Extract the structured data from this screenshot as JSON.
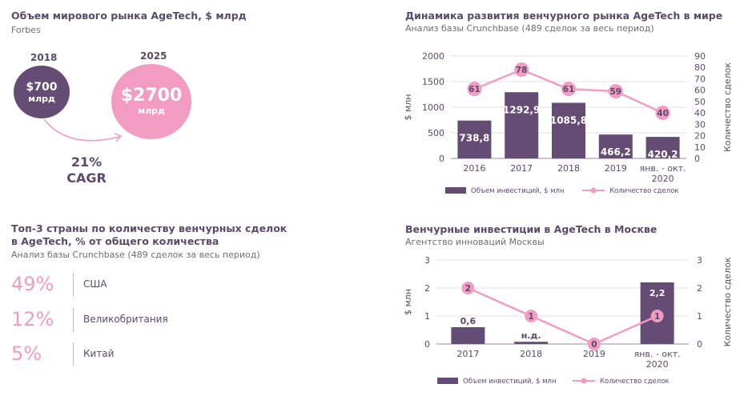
{
  "market": {
    "title": "Объем мирового рынка AgeTech, $ млрд",
    "source": "Forbes",
    "year_2018": "2018",
    "value_2018": "$700",
    "unit_2018": "млрд",
    "year_2025": "2025",
    "value_2025": "$2700",
    "unit_2025": "млрд",
    "cagr_value": "21%",
    "cagr_label": "CAGR",
    "colors": {
      "bubble_2018": "#654c74",
      "bubble_2025": "#f29cc1"
    }
  },
  "countries": {
    "title_line1": "Топ-3 страны по количеству венчурных сделок",
    "title_line2": "в AgeTech, % от общего количества",
    "source": "Анализ базы Crunchbase (489 сделок за весь период)",
    "items": [
      {
        "pct": "49%",
        "name": "США"
      },
      {
        "pct": "12%",
        "name": "Великобритания"
      },
      {
        "pct": "5%",
        "name": "Китай"
      }
    ]
  },
  "chart_data": [
    {
      "type": "bar",
      "title": "Динамика развития венчурного рынка AgeTech в мире",
      "subtitle": "Анализ базы Crunchbase (489 сделок за весь период)",
      "categories": [
        [
          "2016"
        ],
        [
          "2017"
        ],
        [
          "2018"
        ],
        [
          "2019"
        ],
        [
          "янв. - окт.",
          "2020"
        ]
      ],
      "series": [
        {
          "name": "Объем инвестиций, $ млн",
          "type": "bar",
          "axis": "left",
          "values": [
            738.8,
            1292.9,
            1085.8,
            466.2,
            420.2
          ],
          "labels": [
            "738,8",
            "1292,9",
            "1085,8",
            "466,2",
            "420,2"
          ],
          "color": "#654c74"
        },
        {
          "name": "Количество сделок",
          "type": "line",
          "axis": "right",
          "values": [
            61,
            78,
            61,
            59,
            40
          ],
          "labels": [
            "61",
            "78",
            "61",
            "59",
            "40"
          ],
          "color": "#f29cc1"
        }
      ],
      "ylabel": "$ млн",
      "y2label": "Количество сделок",
      "ylim": [
        0,
        2000
      ],
      "yticks": [
        0,
        500,
        1000,
        1500,
        2000
      ],
      "y2lim": [
        0,
        90
      ],
      "y2ticks": [
        0,
        10,
        20,
        30,
        40,
        50,
        60,
        70,
        80,
        90
      ],
      "grid": true,
      "legend": "bottom"
    },
    {
      "type": "bar",
      "title": "Венчурные инвестиции в AgeTech в Москве",
      "subtitle": "Агентство инноваций Москвы",
      "categories": [
        [
          "2017"
        ],
        [
          "2018"
        ],
        [
          "2019"
        ],
        [
          "янв. - окт.",
          "2020"
        ]
      ],
      "series": [
        {
          "name": "Объем инвестиций, $ млн",
          "type": "bar",
          "axis": "left",
          "values": [
            0.6,
            0.08,
            0,
            2.2
          ],
          "labels": [
            "0,6",
            "н.д.",
            "",
            "2,2"
          ],
          "color": "#654c74"
        },
        {
          "name": "Количество сделок",
          "type": "line",
          "axis": "right",
          "values": [
            2,
            1,
            0,
            1
          ],
          "labels": [
            "2",
            "1",
            "0",
            "1"
          ],
          "color": "#f29cc1"
        }
      ],
      "ylabel": "$ млн",
      "y2label": "Количество сделок",
      "ylim": [
        0,
        3
      ],
      "yticks": [
        0,
        1,
        2,
        3
      ],
      "y2lim": [
        0,
        3
      ],
      "y2ticks": [
        0,
        1,
        2,
        3
      ],
      "grid": true,
      "legend": "bottom"
    }
  ]
}
